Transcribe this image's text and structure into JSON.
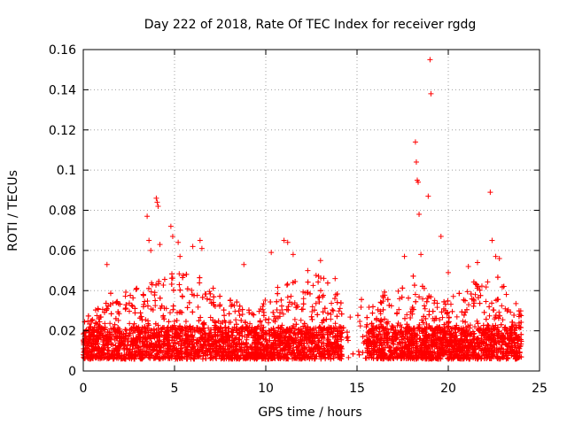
{
  "chart_data": {
    "type": "scatter",
    "title": "Day 222 of 2018, Rate Of TEC Index for receiver rgdg",
    "xlabel": "GPS time / hours",
    "ylabel": "ROTI / TECUs",
    "xlim": [
      0,
      25
    ],
    "ylim": [
      0,
      0.16
    ],
    "x_ticks": [
      "0",
      "5",
      "10",
      "15",
      "20",
      "25"
    ],
    "y_ticks": [
      "0",
      "0.02",
      "0.04",
      "0.06",
      "0.08",
      "0.1",
      "0.12",
      "0.14",
      "0.16"
    ],
    "grid": true,
    "marker": "+",
    "series_color": "#ff0000",
    "series": [
      {
        "name": "ROTI",
        "note": "dense scatter of ~thousands of points; background values 0.005-0.035 TECU spanning 0-24 h with a gap near 14.2-15.5 h",
        "highlight_points": [
          {
            "x": 1.3,
            "y": 0.053
          },
          {
            "x": 3.5,
            "y": 0.077
          },
          {
            "x": 3.6,
            "y": 0.065
          },
          {
            "x": 3.7,
            "y": 0.06
          },
          {
            "x": 4.0,
            "y": 0.086
          },
          {
            "x": 4.05,
            "y": 0.084
          },
          {
            "x": 4.1,
            "y": 0.082
          },
          {
            "x": 4.2,
            "y": 0.063
          },
          {
            "x": 4.8,
            "y": 0.072
          },
          {
            "x": 4.9,
            "y": 0.067
          },
          {
            "x": 5.2,
            "y": 0.064
          },
          {
            "x": 5.3,
            "y": 0.057
          },
          {
            "x": 6.0,
            "y": 0.062
          },
          {
            "x": 6.4,
            "y": 0.065
          },
          {
            "x": 6.5,
            "y": 0.061
          },
          {
            "x": 8.8,
            "y": 0.053
          },
          {
            "x": 10.3,
            "y": 0.059
          },
          {
            "x": 11.0,
            "y": 0.065
          },
          {
            "x": 11.2,
            "y": 0.064
          },
          {
            "x": 11.5,
            "y": 0.058
          },
          {
            "x": 12.3,
            "y": 0.05
          },
          {
            "x": 13.0,
            "y": 0.055
          },
          {
            "x": 13.8,
            "y": 0.046
          },
          {
            "x": 17.6,
            "y": 0.057
          },
          {
            "x": 18.2,
            "y": 0.114
          },
          {
            "x": 18.25,
            "y": 0.104
          },
          {
            "x": 18.3,
            "y": 0.095
          },
          {
            "x": 18.35,
            "y": 0.094
          },
          {
            "x": 18.4,
            "y": 0.078
          },
          {
            "x": 18.5,
            "y": 0.058
          },
          {
            "x": 18.9,
            "y": 0.087
          },
          {
            "x": 19.0,
            "y": 0.155
          },
          {
            "x": 19.05,
            "y": 0.138
          },
          {
            "x": 19.6,
            "y": 0.067
          },
          {
            "x": 20.0,
            "y": 0.049
          },
          {
            "x": 21.1,
            "y": 0.052
          },
          {
            "x": 21.6,
            "y": 0.054
          },
          {
            "x": 22.3,
            "y": 0.089
          },
          {
            "x": 22.4,
            "y": 0.065
          },
          {
            "x": 22.6,
            "y": 0.057
          },
          {
            "x": 22.8,
            "y": 0.056
          }
        ]
      }
    ]
  }
}
